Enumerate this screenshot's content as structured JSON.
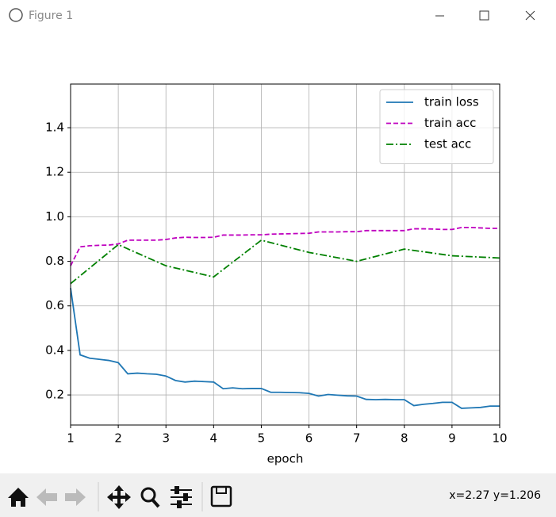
{
  "window": {
    "title": "Figure 1",
    "status": "x=2.27 y=1.206"
  },
  "chart_data": {
    "type": "line",
    "x_label": "epoch",
    "xlim": [
      1,
      10
    ],
    "xticks": [
      1,
      2,
      3,
      4,
      5,
      6,
      7,
      8,
      9,
      10
    ],
    "ylim": [
      0.065,
      1.596
    ],
    "yticks": [
      0.2,
      0.4,
      0.6,
      0.8,
      {
        "value": 1,
        "label": "1.0"
      },
      1.2,
      1.4
    ],
    "grid": true,
    "legend": "upper right",
    "series": [
      {
        "name": "train loss",
        "color": "#1f77b4",
        "linestyle": "solid",
        "x": [
          1,
          1.2,
          1.4,
          1.6,
          1.8,
          2,
          2.2,
          2.4,
          2.6,
          2.8,
          3,
          3.2,
          3.4,
          3.6,
          3.8,
          4,
          4.2,
          4.4,
          4.6,
          4.8,
          5,
          5.2,
          5.4,
          5.6,
          5.8,
          6,
          6.2,
          6.4,
          6.6,
          6.8,
          7,
          7.2,
          7.4,
          7.6,
          7.8,
          8,
          8.2,
          8.4,
          8.6,
          8.8,
          9,
          9.2,
          9.4,
          9.6,
          9.8,
          10
        ],
        "values": [
          0.68,
          0.38,
          0.365,
          0.36,
          0.355,
          0.345,
          0.295,
          0.298,
          0.295,
          0.293,
          0.285,
          0.265,
          0.258,
          0.262,
          0.26,
          0.258,
          0.228,
          0.232,
          0.228,
          0.229,
          0.229,
          0.212,
          0.212,
          0.211,
          0.21,
          0.207,
          0.195,
          0.202,
          0.199,
          0.196,
          0.195,
          0.18,
          0.179,
          0.18,
          0.179,
          0.179,
          0.152,
          0.158,
          0.162,
          0.167,
          0.167,
          0.14,
          0.142,
          0.144,
          0.15,
          0.15
        ]
      },
      {
        "name": "train acc",
        "color": "#bf00bf",
        "linestyle": "dashed",
        "x": [
          1,
          1.2,
          1.4,
          1.6,
          1.8,
          2,
          2.2,
          2.4,
          2.6,
          2.8,
          3,
          3.2,
          3.4,
          3.6,
          3.8,
          4,
          4.2,
          4.4,
          4.6,
          4.8,
          5,
          5.2,
          5.4,
          5.6,
          5.8,
          6,
          6.2,
          6.4,
          6.6,
          6.8,
          7,
          7.2,
          7.4,
          7.6,
          7.8,
          8,
          8.2,
          8.4,
          8.6,
          8.8,
          9,
          9.2,
          9.4,
          9.6,
          9.8,
          10
        ],
        "values": [
          0.78,
          0.865,
          0.87,
          0.872,
          0.873,
          0.878,
          0.895,
          0.895,
          0.895,
          0.895,
          0.898,
          0.905,
          0.908,
          0.907,
          0.907,
          0.908,
          0.918,
          0.918,
          0.918,
          0.919,
          0.919,
          0.922,
          0.923,
          0.924,
          0.925,
          0.926,
          0.932,
          0.932,
          0.932,
          0.933,
          0.933,
          0.938,
          0.938,
          0.938,
          0.938,
          0.938,
          0.946,
          0.946,
          0.945,
          0.943,
          0.943,
          0.952,
          0.952,
          0.95,
          0.948,
          0.948
        ]
      },
      {
        "name": "test acc",
        "color": "#008000",
        "linestyle": "dashdot",
        "x": [
          1,
          2,
          3,
          4,
          5,
          6,
          7,
          8,
          9,
          10
        ],
        "values": [
          0.7,
          0.875,
          0.78,
          0.73,
          0.895,
          0.84,
          0.8,
          0.855,
          0.825,
          0.815
        ]
      }
    ]
  }
}
